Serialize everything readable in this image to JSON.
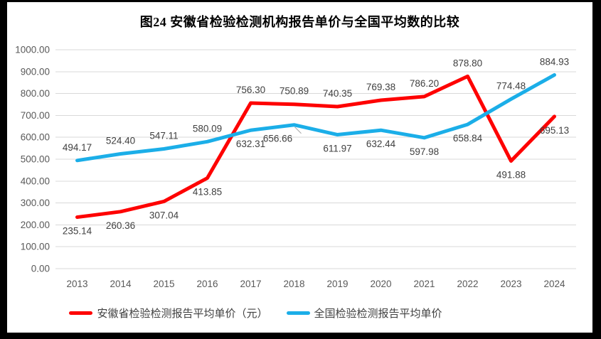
{
  "title": "图24 安徽省检验检测机构报告单价与全国平均数的比较",
  "legend": {
    "items": [
      {
        "label": "安徽省检验检测报告平均单价（元）",
        "series_key": "anhui"
      },
      {
        "label": "全国检验检测报告平均单价",
        "series_key": "national"
      }
    ]
  },
  "colors": {
    "anhui_line": "#FE0000",
    "national_line": "#1BAEE8",
    "gridline": "#D9D9D9",
    "axis_text": "#595959",
    "data_label_text": "#404040",
    "title_text": "#000000",
    "frame": "#000000",
    "canvas": "#FFFFFF",
    "leader_line": "#A6A6A6"
  },
  "chart_data": {
    "type": "line",
    "title": "图24 安徽省检验检测机构报告单价与全国平均数的比较",
    "categories": [
      "2013",
      "2014",
      "2015",
      "2016",
      "2017",
      "2018",
      "2019",
      "2020",
      "2021",
      "2022",
      "2023",
      "2024"
    ],
    "series": [
      {
        "name": "安徽省检验检测报告平均单价（元）",
        "key": "anhui",
        "color": "#FE0000",
        "values": [
          235.14,
          260.36,
          307.04,
          413.85,
          756.3,
          750.89,
          740.35,
          769.38,
          786.2,
          878.8,
          491.88,
          695.13
        ]
      },
      {
        "name": "全国检验检测报告平均单价",
        "key": "national",
        "color": "#1BAEE8",
        "values": [
          494.17,
          524.4,
          547.11,
          580.09,
          632.31,
          656.66,
          611.97,
          632.44,
          597.98,
          658.84,
          774.48,
          884.93
        ]
      }
    ],
    "ylim": [
      0,
      1000
    ],
    "ytick_step": 100,
    "value_decimals": 2,
    "grid": "horizontal",
    "legend_position": "bottom",
    "data_labels": true
  }
}
